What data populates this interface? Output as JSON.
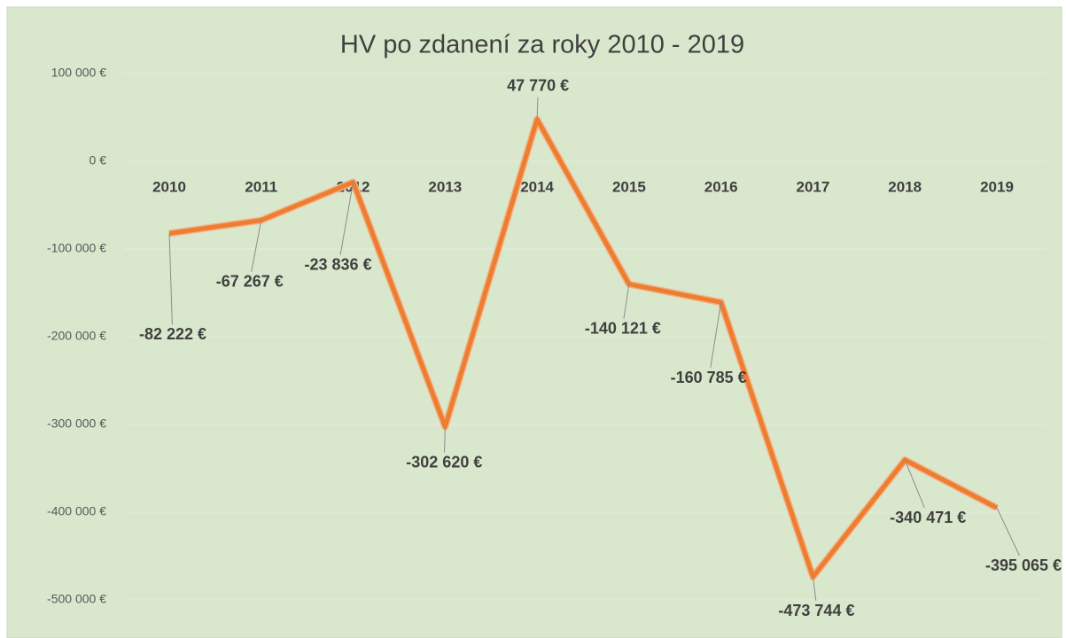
{
  "chart_data": {
    "type": "line",
    "title": "HV po zdanení za roky 2010 - 2019",
    "categories": [
      "2010",
      "2011",
      "2012",
      "2013",
      "2014",
      "2015",
      "2016",
      "2017",
      "2018",
      "2019"
    ],
    "series": [
      {
        "name": "HV po zdanení",
        "color": "#ed7d31",
        "values": [
          -82222,
          -67267,
          -23836,
          -302620,
          47770,
          -140121,
          -160785,
          -473744,
          -340471,
          -395065
        ],
        "value_labels": [
          "-82 222 €",
          "-67 267 €",
          "-23 836 €",
          "-302 620 €",
          "47 770 €",
          "-140 121 €",
          "-160 785 €",
          "-473 744 €",
          "-340 471 €",
          "-395 065 €"
        ]
      }
    ],
    "ylim": [
      -500000,
      100000
    ],
    "yticks": [
      {
        "value": 100000,
        "label": "100 000 €"
      },
      {
        "value": 0,
        "label": "0 €"
      },
      {
        "value": -100000,
        "label": "-100 000 €"
      },
      {
        "value": -200000,
        "label": "-200 000 €"
      },
      {
        "value": -300000,
        "label": "-300 000 €"
      },
      {
        "value": -400000,
        "label": "-400 000 €"
      },
      {
        "value": -500000,
        "label": "-500 000 €"
      }
    ],
    "grid": true
  }
}
